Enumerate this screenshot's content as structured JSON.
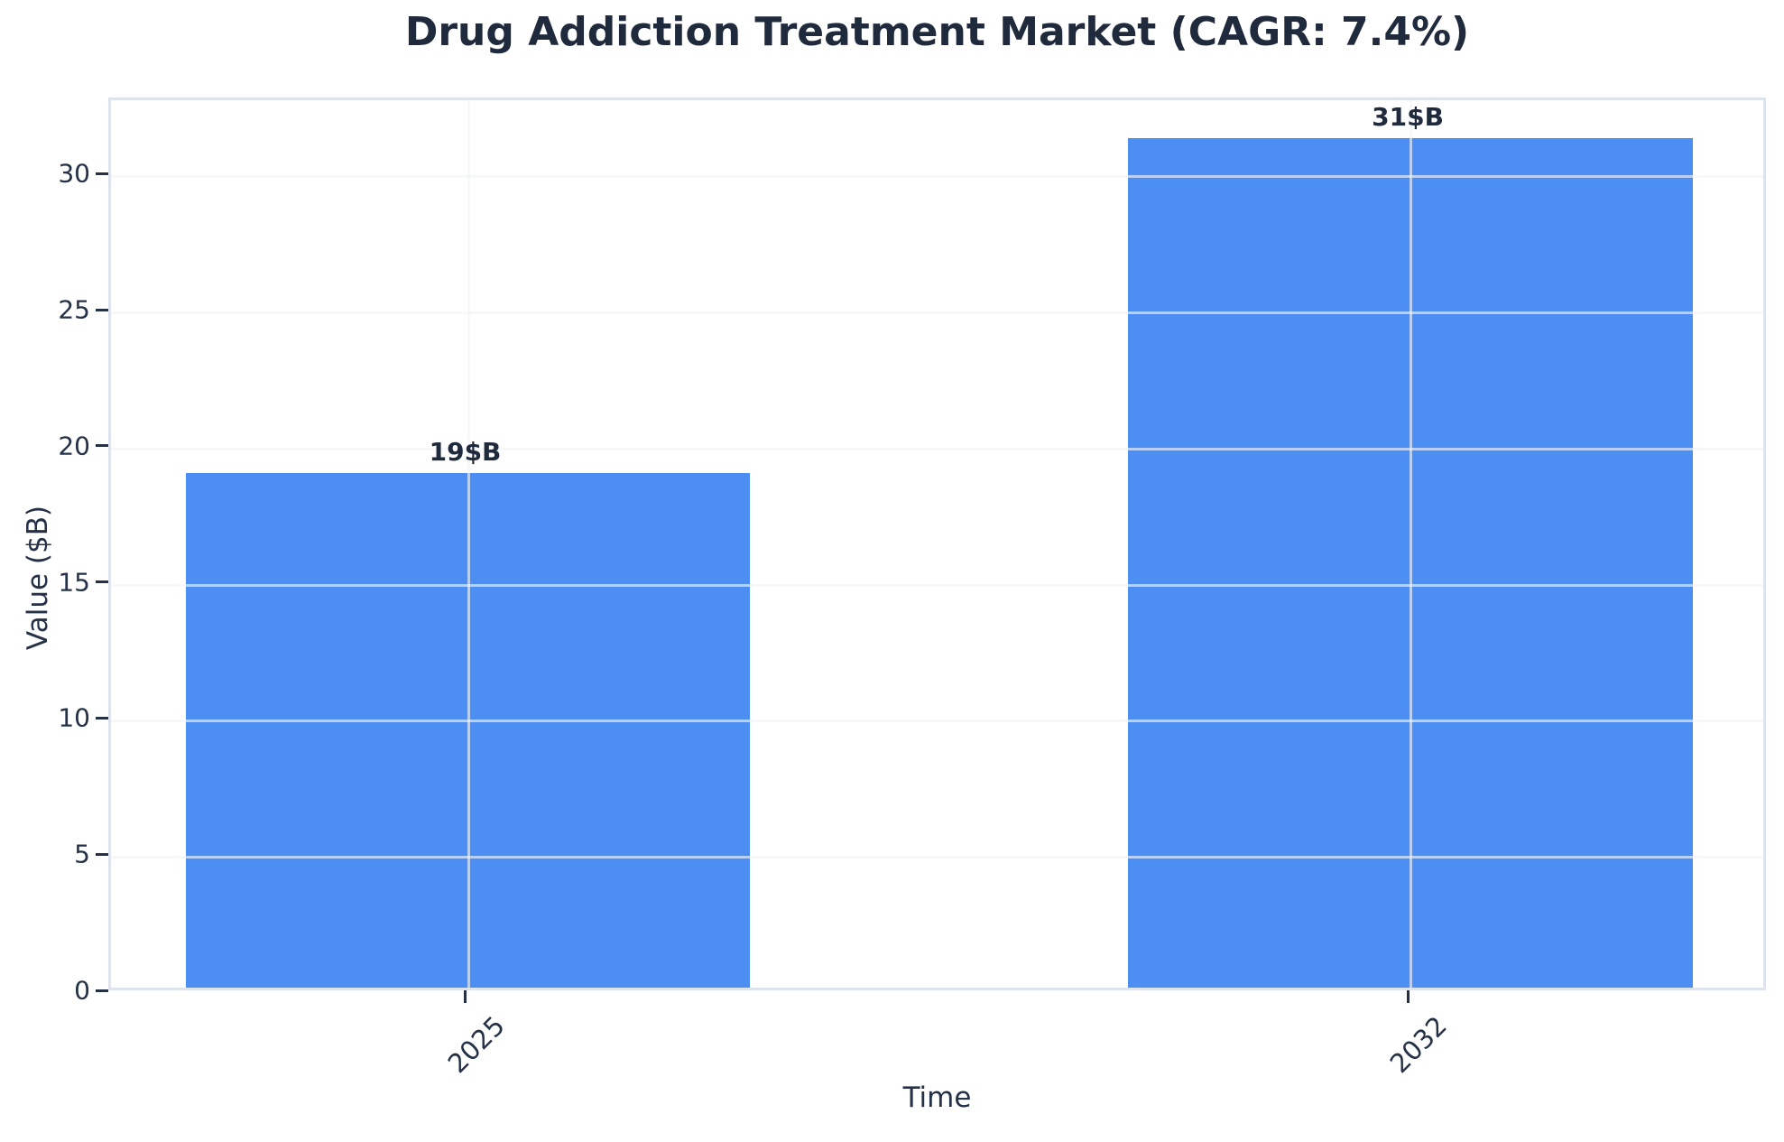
{
  "title": "Drug Addiction Treatment Market (CAGR: 7.4%)",
  "chart_data": {
    "type": "bar",
    "categories": [
      "2025",
      "2032"
    ],
    "values": [
      18.9,
      31.2
    ],
    "bar_labels": [
      "19$B",
      "31$B"
    ],
    "title": "Drug Addiction Treatment Market (CAGR: 7.4%)",
    "xlabel": "Time",
    "ylabel": "Value ($B)",
    "ylim": [
      0,
      32.8
    ],
    "yticks": [
      0,
      5,
      10,
      15,
      20,
      25,
      30
    ],
    "grid": true,
    "legend_position": "none",
    "colors": {
      "bar": "#4d8ef3",
      "title_text": "#1f2a3d",
      "axis_text": "#243147",
      "spine": "#dde4ee",
      "gridline": "rgba(241,244,248,0.65)",
      "background": "#ffffff"
    }
  }
}
